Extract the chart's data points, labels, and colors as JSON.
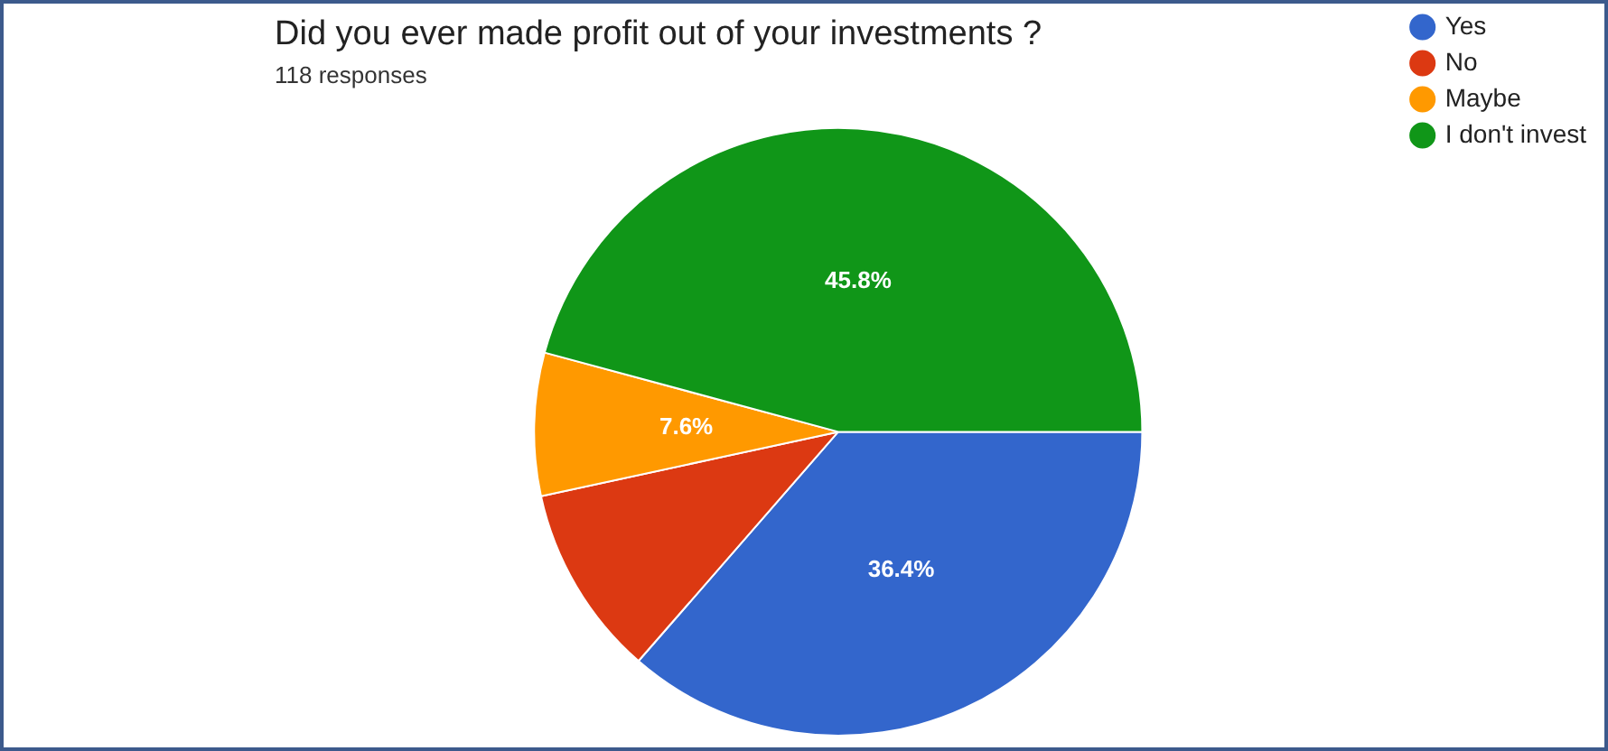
{
  "chart_data": {
    "type": "pie",
    "title": "Did you ever made profit out of your investments ?",
    "subtitle": "118 responses",
    "categories": [
      "Yes",
      "No",
      "Maybe",
      "I don't invest"
    ],
    "values": [
      36.4,
      10.2,
      7.6,
      45.8
    ],
    "colors": [
      "#3366cc",
      "#dc3912",
      "#ff9900",
      "#109618"
    ],
    "value_labels": [
      "36.4%",
      null,
      "7.6%",
      "45.8%"
    ],
    "legend": "right"
  }
}
